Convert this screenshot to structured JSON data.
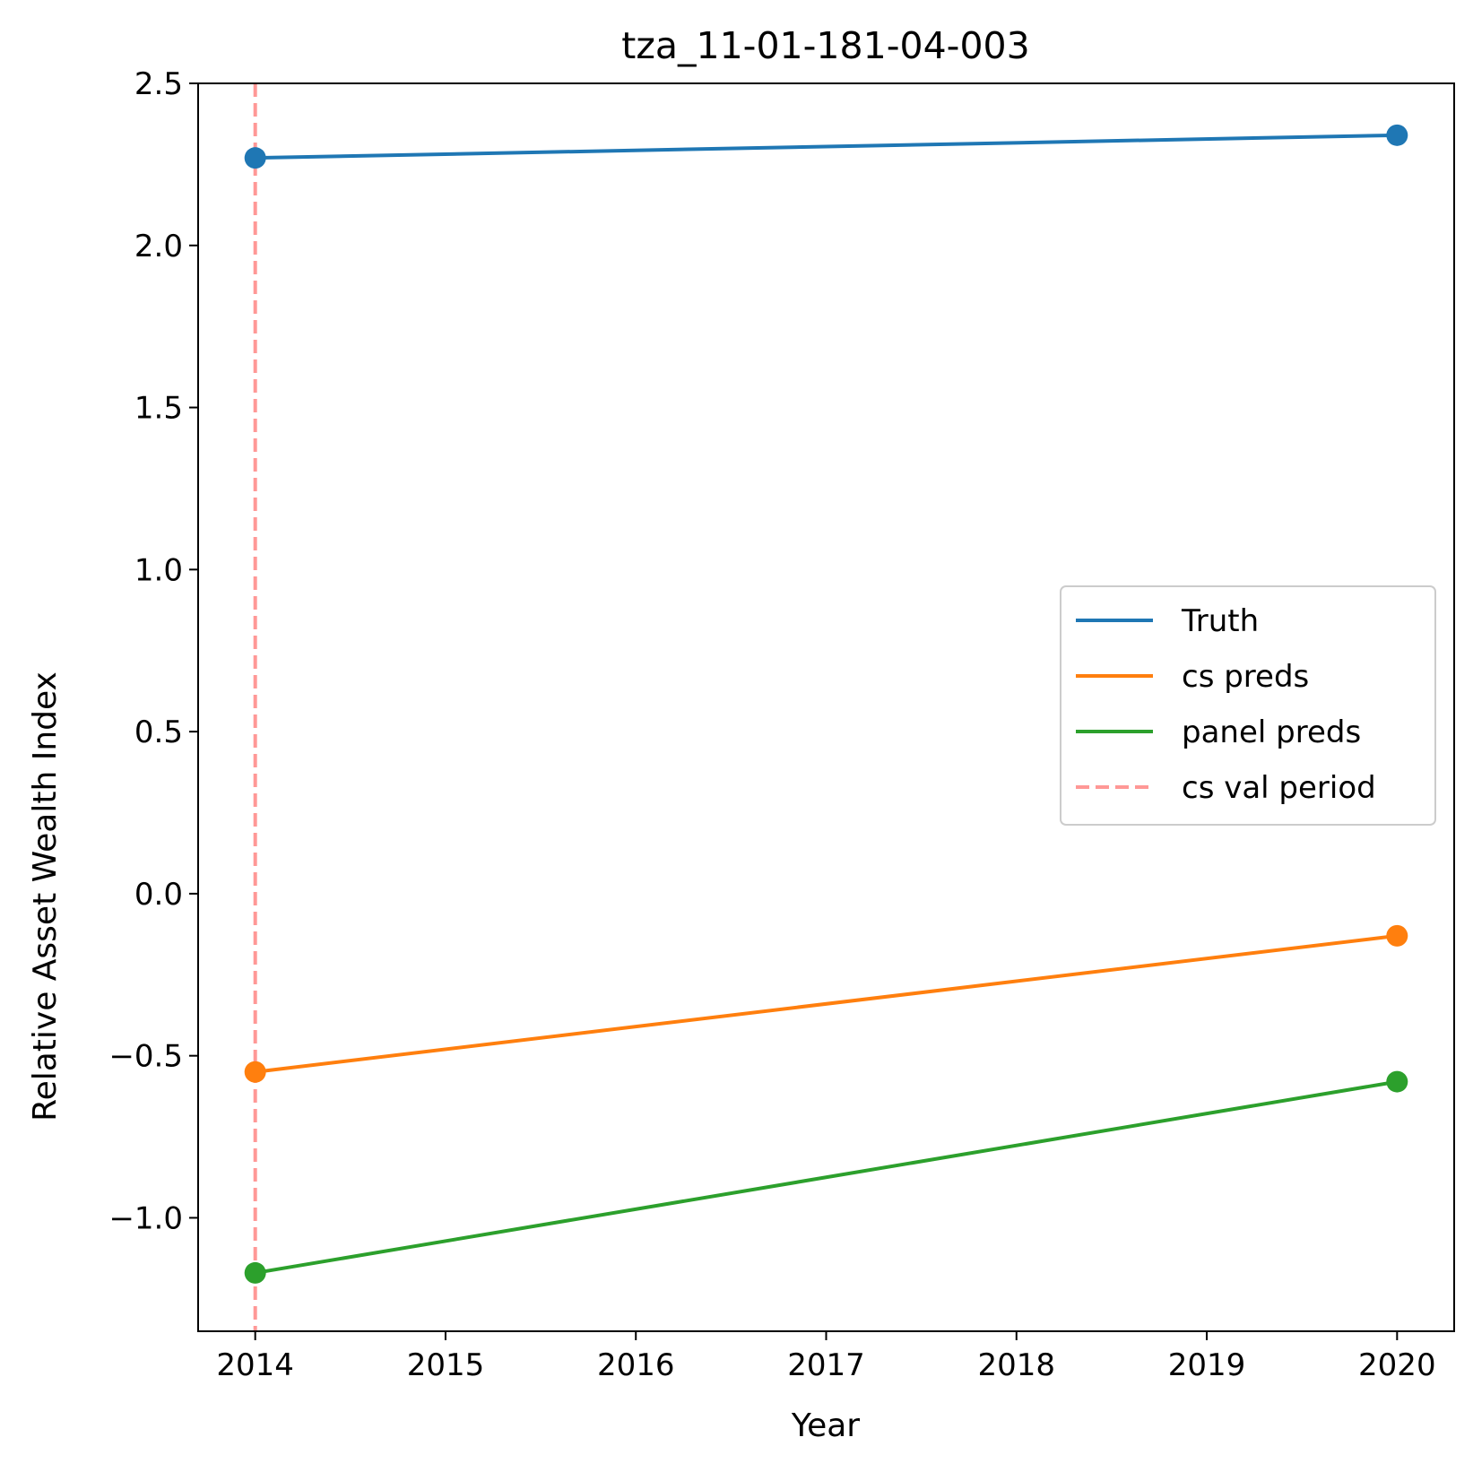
{
  "chart_data": {
    "type": "line",
    "title": "tza_11-01-181-04-003",
    "xlabel": "Year",
    "ylabel": "Relative Asset Wealth Index",
    "x": [
      2014,
      2020
    ],
    "xlim": [
      2013.7,
      2020.3
    ],
    "ylim": [
      -1.35,
      2.5
    ],
    "xticks": [
      "2014",
      "2015",
      "2016",
      "2017",
      "2018",
      "2019",
      "2020"
    ],
    "yticks": [
      "−1.0",
      "−0.5",
      "0.0",
      "0.5",
      "1.0",
      "1.5",
      "2.0",
      "2.5"
    ],
    "series": [
      {
        "name": "Truth",
        "values": [
          2.27,
          2.34
        ],
        "color": "#1f77b4",
        "markers": true
      },
      {
        "name": "cs preds",
        "values": [
          -0.55,
          -0.13
        ],
        "color": "#ff7f0e",
        "markers": true
      },
      {
        "name": "panel preds",
        "values": [
          -1.17,
          -0.58
        ],
        "color": "#2ca02c",
        "markers": true
      }
    ],
    "vlines": [
      {
        "name": "cs val period",
        "x": 2014,
        "color": "#ff9896",
        "style": "dashed"
      }
    ],
    "legend": {
      "placement": "center-right"
    },
    "grid": false
  }
}
